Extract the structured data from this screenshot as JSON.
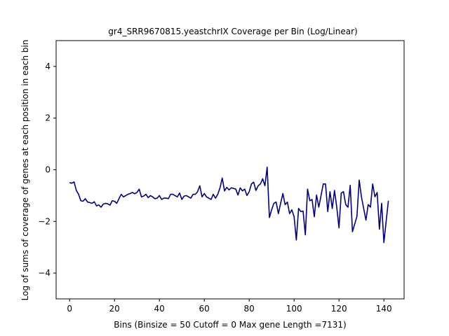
{
  "chart_data": {
    "type": "line",
    "title": "gr4_SRR9670815.yeastchrIX Coverage per Bin (Log/Linear)",
    "xlabel": "Bins  (Binsize = 50 Cutoff = 0 Max gene Length =7131)",
    "ylabel": "Log of sums of coverage of genes at each position in each bin",
    "xlim": [
      -6,
      149
    ],
    "ylim": [
      -5,
      5
    ],
    "xticks": [
      0,
      20,
      40,
      60,
      80,
      100,
      120,
      140
    ],
    "yticks": [
      -4,
      -2,
      0,
      2,
      4
    ],
    "line_color": "#000080",
    "grid": false,
    "series": [
      {
        "x": [
          0,
          1,
          2,
          3,
          4,
          5,
          6,
          7,
          8,
          9,
          10,
          11,
          12,
          13,
          14,
          15,
          16,
          17,
          18,
          19,
          20,
          21,
          22,
          23,
          24,
          25,
          26,
          27,
          28,
          29,
          30,
          31,
          32,
          33,
          34,
          35,
          36,
          37,
          38,
          39,
          40,
          41,
          42,
          43,
          44,
          45,
          46,
          47,
          48,
          49,
          50,
          51,
          52,
          53,
          54,
          55,
          56,
          57,
          58,
          59,
          60,
          61,
          62,
          63,
          64,
          65,
          66,
          67,
          68,
          69,
          70,
          71,
          72,
          73,
          74,
          75,
          76,
          77,
          78,
          79,
          80,
          81,
          82,
          83,
          84,
          85,
          86,
          87,
          88,
          89,
          90,
          91,
          92,
          93,
          94,
          95,
          96,
          97,
          98,
          99,
          100,
          101,
          102,
          103,
          104,
          105,
          106,
          107,
          108,
          109,
          110,
          111,
          112,
          113,
          114,
          115,
          116,
          117,
          118,
          119,
          120,
          121,
          122,
          123,
          124,
          125,
          126,
          127,
          128,
          129,
          130,
          131,
          132,
          133,
          134,
          135,
          136,
          137,
          138,
          139,
          140,
          141,
          142
        ],
        "y": [
          -0.5,
          -0.52,
          -0.47,
          -0.8,
          -0.95,
          -1.2,
          -1.22,
          -1.12,
          -1.25,
          -1.27,
          -1.3,
          -1.24,
          -1.4,
          -1.36,
          -1.45,
          -1.33,
          -1.3,
          -1.32,
          -1.37,
          -1.2,
          -1.22,
          -1.3,
          -1.12,
          -0.95,
          -1.05,
          -1.0,
          -0.95,
          -0.92,
          -0.88,
          -0.93,
          -0.88,
          -0.75,
          -1.05,
          -1.02,
          -0.95,
          -1.08,
          -1.0,
          -1.05,
          -1.12,
          -1.1,
          -1.0,
          -1.15,
          -1.1,
          -1.1,
          -1.12,
          -0.95,
          -0.95,
          -1.0,
          -1.05,
          -0.9,
          -1.15,
          -1.02,
          -1.0,
          -1.05,
          -1.1,
          -0.95,
          -0.95,
          -0.85,
          -0.62,
          -1.05,
          -0.92,
          -1.05,
          -1.1,
          -1.15,
          -0.95,
          -1.1,
          -0.95,
          -0.7,
          -0.32,
          -0.82,
          -0.68,
          -0.78,
          -0.7,
          -0.72,
          -0.75,
          -0.98,
          -0.7,
          -0.82,
          -0.75,
          -1.0,
          -0.85,
          -0.55,
          -0.48,
          -0.8,
          -0.62,
          -0.55,
          -0.35,
          -0.62,
          0.1,
          -1.85,
          -1.55,
          -1.3,
          -1.25,
          -1.7,
          -1.3,
          -0.92,
          -1.35,
          -1.25,
          -1.7,
          -1.55,
          -1.82,
          -2.72,
          -1.5,
          -1.62,
          -1.6,
          -2.52,
          -0.75,
          -1.2,
          -1.15,
          -1.82,
          -0.98,
          -1.45,
          -1.0,
          -0.55,
          -0.55,
          -1.62,
          -0.85,
          -1.5,
          -0.8,
          -1.45,
          -2.25,
          -0.9,
          -0.85,
          -1.35,
          -1.45,
          -0.6,
          -2.4,
          -2.1,
          -1.8,
          -0.4,
          -1.05,
          -1.5,
          -1.95,
          -1.35,
          -1.45,
          -0.55,
          -1.05,
          -0.88,
          -2.3,
          -1.3,
          -2.82,
          -2.0,
          -1.2
        ]
      }
    ]
  }
}
